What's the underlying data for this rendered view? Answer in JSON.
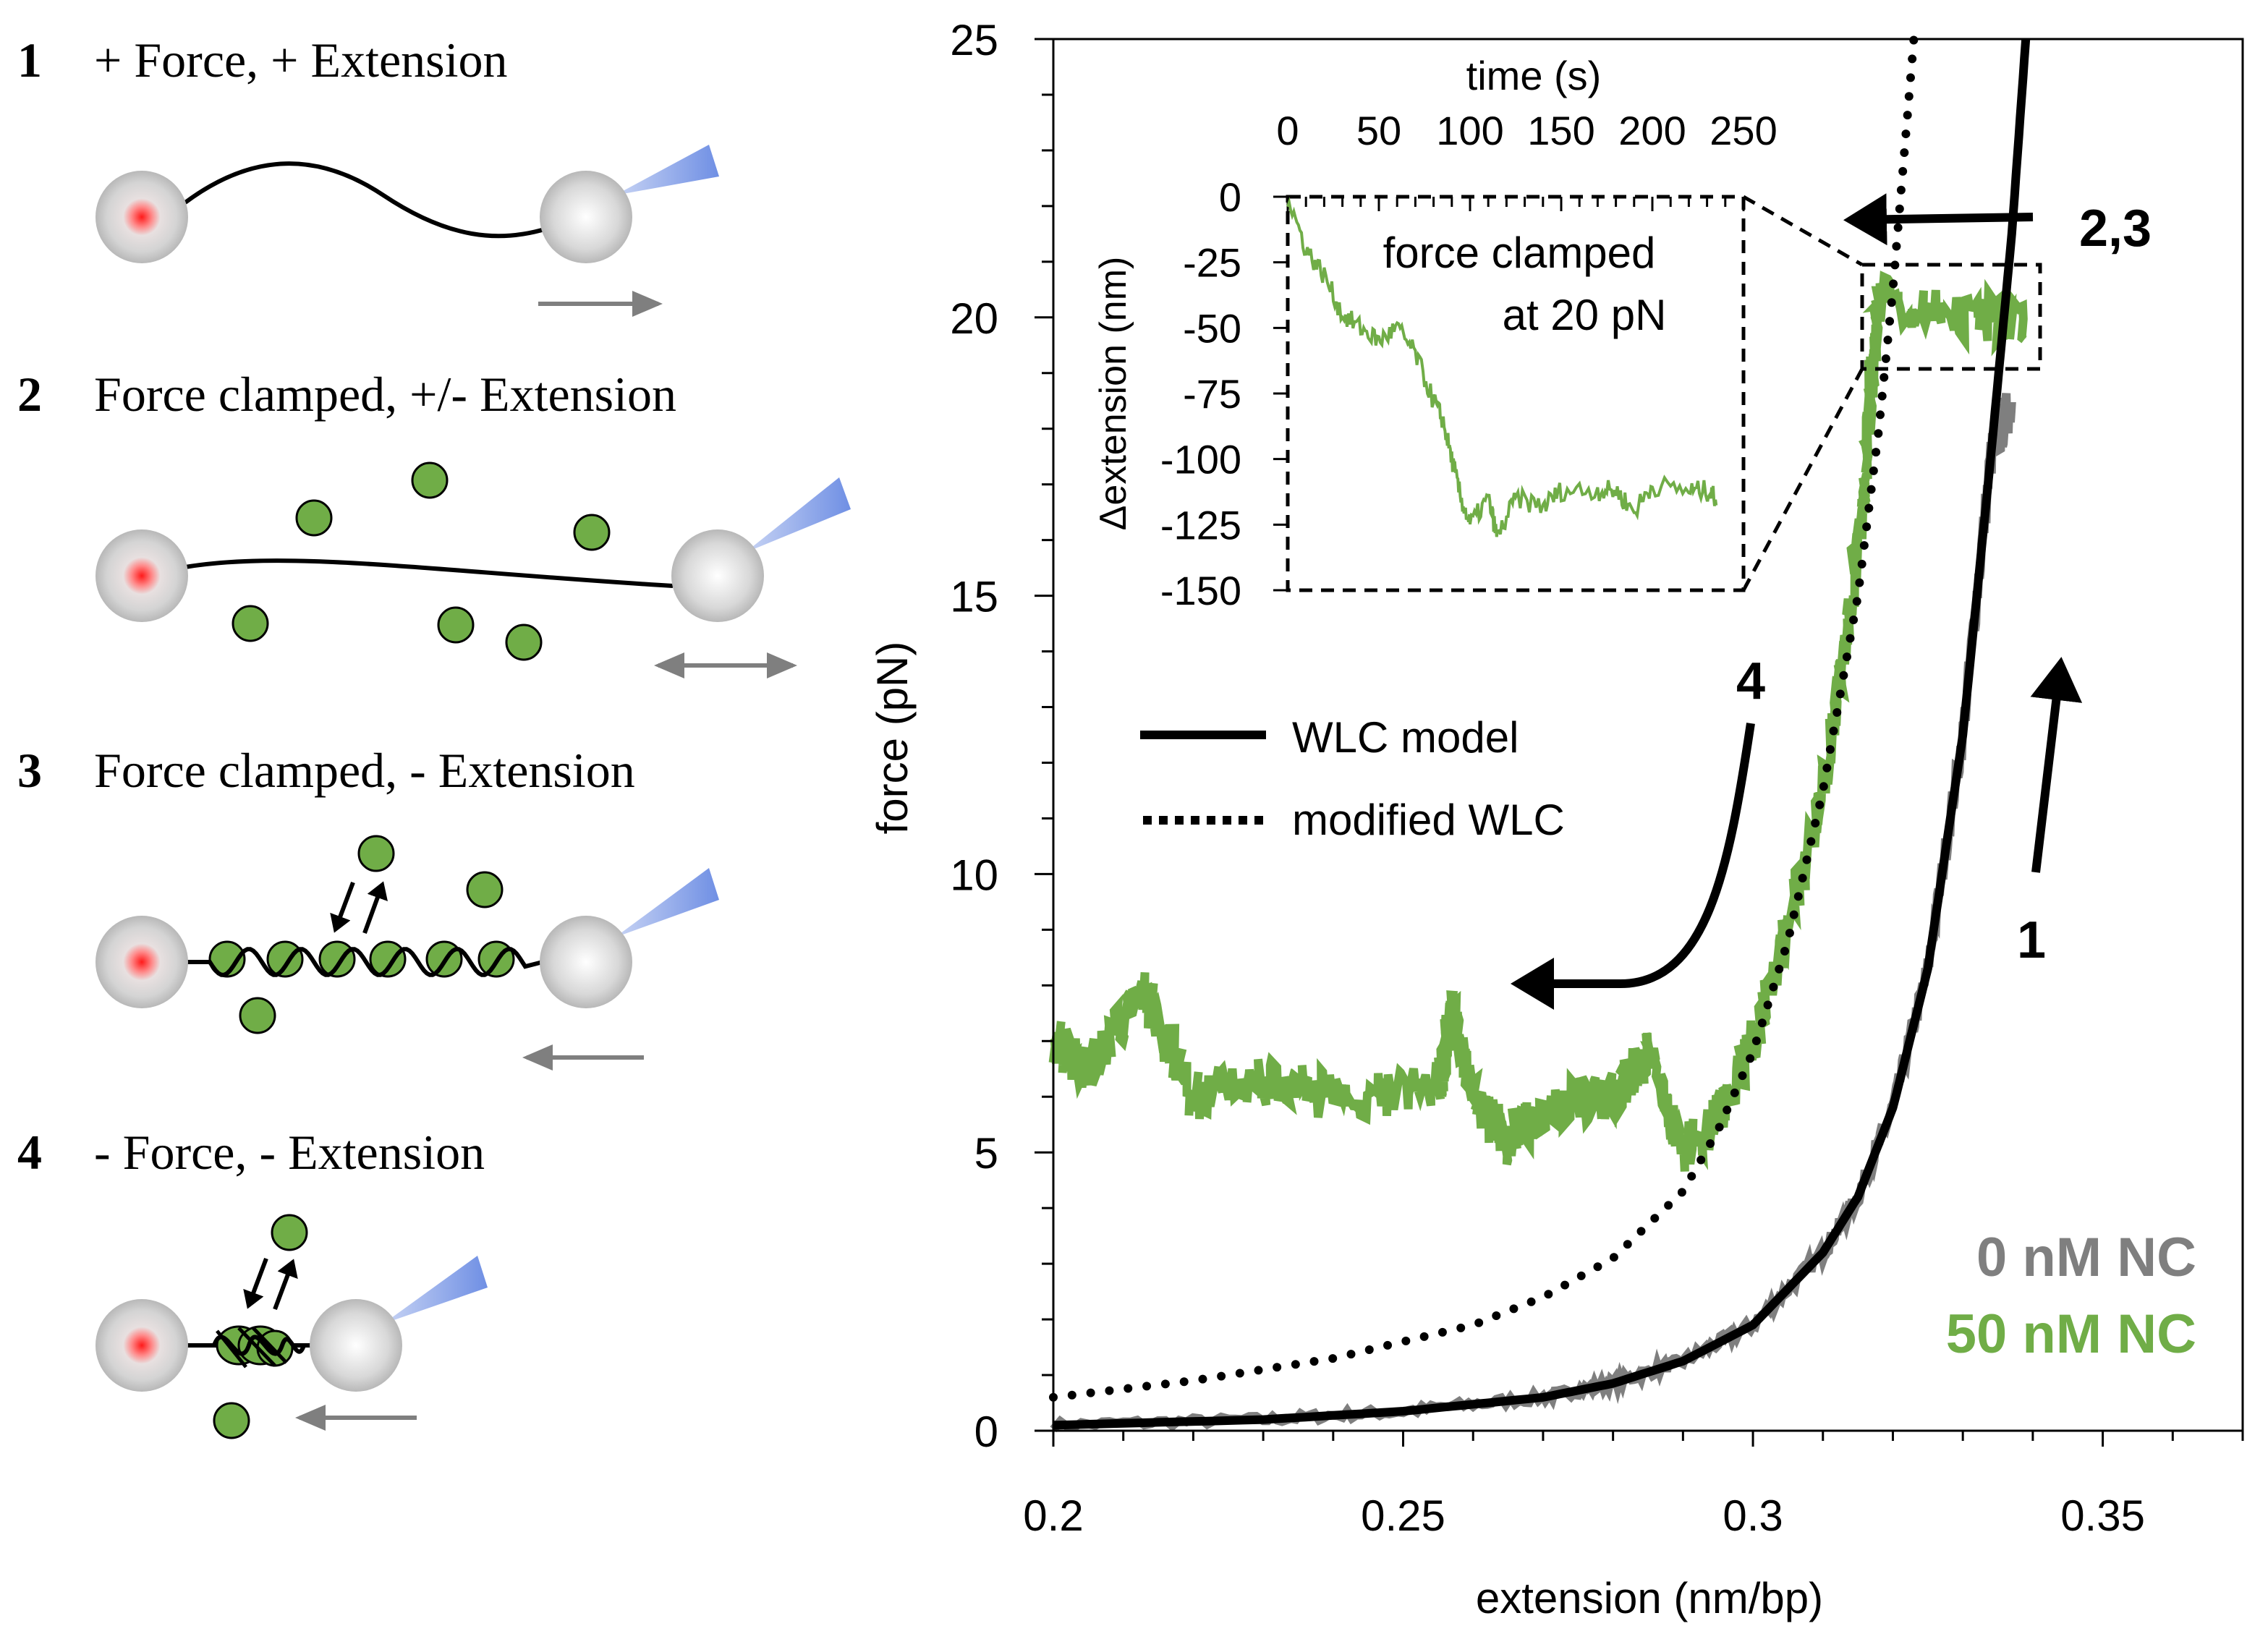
{
  "steps": [
    {
      "num": "1",
      "label": "+ Force, + Extension"
    },
    {
      "num": "2",
      "label": "Force clamped, +/- Extension"
    },
    {
      "num": "3",
      "label": "Force clamped, - Extension"
    },
    {
      "num": "4",
      "label": "- Force, - Extension"
    }
  ],
  "colors": {
    "green": "#70ad47",
    "gray": "#7f7f7f",
    "black": "#000000",
    "bead_red": "#ff2020",
    "laser_blue": "#7f9ee8"
  },
  "chart_data": [
    {
      "type": "line",
      "title": "",
      "xlabel": "extension (nm/bp)",
      "ylabel": "force (pN)",
      "xlim": [
        0.2,
        0.37
      ],
      "ylim": [
        0,
        25
      ],
      "xticks": [
        "0.2",
        "0.25",
        "0.3",
        "0.35"
      ],
      "xtick_values": [
        0.2,
        0.25,
        0.3,
        0.35
      ],
      "yticks": [
        "0",
        "5",
        "10",
        "15",
        "20",
        "25"
      ],
      "ytick_values": [
        0,
        5,
        10,
        15,
        20,
        25
      ],
      "grid": false,
      "legend": {
        "placement": "center-left",
        "entries": [
          {
            "label": "WLC model",
            "style": "solid"
          },
          {
            "label": "modified WLC",
            "style": "dotted"
          }
        ]
      },
      "series_labels": [
        {
          "label": "0 nM NC",
          "color": "#7f7f7f"
        },
        {
          "label": "50 nM NC",
          "color": "#70ad47"
        }
      ],
      "annotations": [
        {
          "text": "2,3",
          "points_to": "force clamp at 20 pN (leftward)"
        },
        {
          "text": "4",
          "points_to": "force decrease (leftward)"
        },
        {
          "text": "1",
          "points_to": "stretching (upward)"
        }
      ],
      "series": [
        {
          "name": "WLC model",
          "style": "solid",
          "x": [
            0.2,
            0.23,
            0.25,
            0.27,
            0.28,
            0.29,
            0.3,
            0.31,
            0.315,
            0.32,
            0.325,
            0.33,
            0.334,
            0.337,
            0.339
          ],
          "y": [
            0.1,
            0.2,
            0.35,
            0.6,
            0.85,
            1.25,
            1.9,
            3.2,
            4.2,
            5.8,
            8.3,
            12.5,
            17.5,
            21.5,
            25
          ]
        },
        {
          "name": "modified WLC",
          "style": "dotted",
          "x": [
            0.2,
            0.22,
            0.24,
            0.26,
            0.27,
            0.28,
            0.29,
            0.295,
            0.3,
            0.305,
            0.31,
            0.315,
            0.318,
            0.32,
            0.323
          ],
          "y": [
            0.6,
            0.9,
            1.3,
            1.9,
            2.4,
            3.1,
            4.3,
            5.4,
            6.8,
            8.8,
            11.5,
            15,
            18,
            20.5,
            25
          ]
        },
        {
          "name": "0 nM NC",
          "x": [
            0.2,
            0.23,
            0.25,
            0.27,
            0.28,
            0.29,
            0.3,
            0.31,
            0.315,
            0.32,
            0.325,
            0.33,
            0.334,
            0.337
          ],
          "y": [
            0.1,
            0.2,
            0.35,
            0.6,
            0.85,
            1.25,
            1.9,
            3.2,
            4.2,
            5.8,
            8.3,
            12.5,
            17.5,
            18.5
          ]
        },
        {
          "name": "50 nM NC",
          "x": [
            0.339,
            0.33,
            0.318,
            0.317,
            0.316,
            0.313,
            0.31,
            0.305,
            0.3,
            0.295,
            0.29,
            0.285,
            0.28,
            0.27,
            0.265,
            0.26,
            0.257,
            0.255,
            0.24,
            0.23,
            0.22,
            0.213,
            0.205,
            0.2
          ],
          "y": [
            20,
            20,
            20.3,
            19,
            17,
            14,
            11.5,
            9,
            7,
            5.6,
            5,
            6.8,
            6,
            5.8,
            5.2,
            6,
            7.5,
            6.2,
            6,
            6.3,
            6,
            7.9,
            6.5,
            7
          ]
        }
      ]
    },
    {
      "type": "line",
      "title": "force clamped at 20 pN",
      "title_lines": [
        "force clamped",
        "at 20 pN"
      ],
      "xlabel": "time (s)",
      "ylabel": "Δextension (nm)",
      "xlim": [
        0,
        250
      ],
      "ylim": [
        -150,
        0
      ],
      "xticks": [
        "0",
        "50",
        "100",
        "150",
        "200",
        "250"
      ],
      "xtick_values": [
        0,
        50,
        100,
        150,
        200,
        250
      ],
      "yticks": [
        "0",
        "-25",
        "-50",
        "-75",
        "-100",
        "-125",
        "-150"
      ],
      "ytick_values": [
        0,
        -25,
        -50,
        -75,
        -100,
        -125,
        -150
      ],
      "series": [
        {
          "name": "50 nM NC, 20 pN clamp",
          "x": [
            0,
            10,
            20,
            30,
            40,
            50,
            60,
            70,
            80,
            85,
            90,
            95,
            100,
            110,
            115,
            125,
            140,
            150,
            170,
            180,
            190,
            200,
            220,
            230,
            235
          ],
          "y": [
            0,
            -20,
            -30,
            -45,
            -50,
            -55,
            -50,
            -60,
            -78,
            -85,
            -100,
            -115,
            -125,
            -115,
            -130,
            -115,
            -118,
            -112,
            -112,
            -112,
            -120,
            -110,
            -112,
            -112,
            -115
          ]
        }
      ]
    }
  ]
}
